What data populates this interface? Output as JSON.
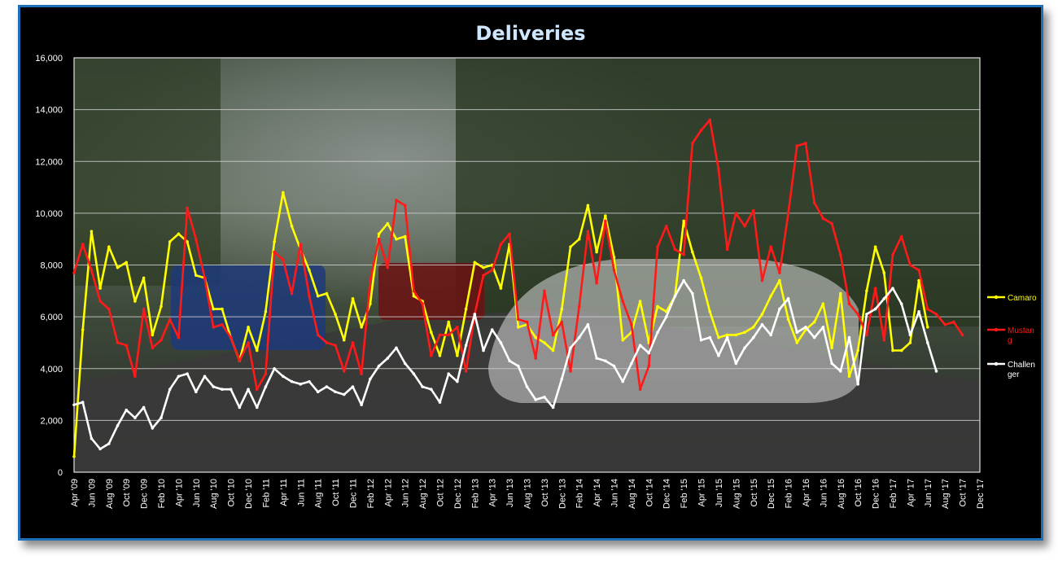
{
  "chart_data": {
    "type": "line",
    "title": "Deliveries",
    "xlabel": "",
    "ylabel": "",
    "ylim": [
      0,
      16000
    ],
    "y_ticks": [
      "0",
      "2,000",
      "4,000",
      "6,000",
      "8,000",
      "10,000",
      "12,000",
      "14,000",
      "16,000"
    ],
    "x_tick_labels": [
      "Apr '09",
      "Jun '09",
      "Aug '09",
      "Oct '09",
      "Dec '09",
      "Feb '10",
      "Apr '10",
      "Jun '10",
      "Aug '10",
      "Oct '10",
      "Dec '10",
      "Feb '11",
      "Apr '11",
      "Jun '11",
      "Aug '11",
      "Oct '11",
      "Dec '11",
      "Feb '12",
      "Apr '12",
      "Jun '12",
      "Aug '12",
      "Oct '12",
      "Dec '12",
      "Feb '13",
      "Apr '13",
      "Jun '13",
      "Aug '13",
      "Oct '13",
      "Dec '13",
      "Feb '14",
      "Apr '14",
      "Jun '14",
      "Aug '14",
      "Oct '14",
      "Dec '14",
      "Feb '15",
      "Apr '15",
      "Jun '15",
      "Aug '15",
      "Oct '15",
      "Dec '15",
      "Feb '16",
      "Apr '16",
      "Jun '16",
      "Aug '16",
      "Oct '16",
      "Dec '16",
      "Feb '17",
      "Apr '17",
      "Jun '17",
      "Aug '17",
      "Oct '17",
      "Dec '17"
    ],
    "grid": true,
    "legend_position": "right",
    "series": [
      {
        "name": "Camaro",
        "color": "#ffff00",
        "values": [
          600,
          5500,
          9300,
          7100,
          8700,
          7900,
          8100,
          6600,
          7500,
          5300,
          6400,
          8900,
          9200,
          8900,
          7600,
          7500,
          6300,
          6300,
          5200,
          4300,
          5600,
          4700,
          6200,
          8900,
          10800,
          9500,
          8600,
          7800,
          6800,
          6900,
          6100,
          5100,
          6700,
          5600,
          6500,
          9200,
          9600,
          9000,
          9100,
          6800,
          6600,
          5400,
          4500,
          5800,
          4500,
          6300,
          8100,
          7900,
          8000,
          7100,
          8800,
          5600,
          5700,
          5200,
          5000,
          4700,
          6300,
          8700,
          9000,
          10300,
          8500,
          9900,
          8300,
          5100,
          5400,
          6600,
          5000,
          6400,
          6200,
          6800,
          9700,
          8500,
          7500,
          6200,
          5200,
          5300,
          5300,
          5400,
          5600,
          6100,
          6800,
          7400,
          5900,
          5000,
          5500,
          5800,
          6500,
          4800,
          6900,
          3700,
          4700,
          7000,
          8700,
          7700,
          4700,
          4700,
          5000,
          7400,
          5600
        ]
      },
      {
        "name": "Mustang",
        "color": "#ff1a1a",
        "values": [
          7700,
          8800,
          7800,
          6600,
          6300,
          5000,
          4900,
          3700,
          6300,
          4800,
          5100,
          5900,
          5200,
          10200,
          9000,
          7500,
          5600,
          5700,
          5200,
          4300,
          5000,
          3200,
          3800,
          8500,
          8200,
          6900,
          8800,
          6800,
          5300,
          5000,
          4900,
          3900,
          5000,
          3800,
          7400,
          9000,
          7900,
          10500,
          10300,
          7000,
          6500,
          4500,
          5300,
          5300,
          5600,
          3900,
          6100,
          7600,
          7800,
          8800,
          9200,
          5900,
          5800,
          4400,
          7000,
          5300,
          5800,
          3900,
          6400,
          9300,
          7300,
          9700,
          7800,
          6600,
          5700,
          3200,
          4100,
          8700,
          9500,
          8600,
          8400,
          12700,
          13200,
          13600,
          11700,
          8600,
          10000,
          9500,
          10100,
          7400,
          8700,
          7700,
          10000,
          12600,
          12700,
          10400,
          9800,
          9600,
          8400,
          6500,
          6100,
          5300,
          7100,
          5100,
          8400,
          9100,
          8000,
          7800,
          6300,
          6100,
          5700,
          5800,
          5300
        ]
      },
      {
        "name": "Challenger",
        "color": "#ffffff",
        "values": [
          2600,
          2700,
          1300,
          900,
          1100,
          1800,
          2400,
          2100,
          2500,
          1700,
          2100,
          3200,
          3700,
          3800,
          3100,
          3700,
          3300,
          3200,
          3200,
          2500,
          3200,
          2500,
          3300,
          4000,
          3700,
          3500,
          3400,
          3500,
          3100,
          3300,
          3100,
          3000,
          3300,
          2600,
          3600,
          4100,
          4400,
          4800,
          4200,
          3800,
          3300,
          3200,
          2700,
          3800,
          3500,
          4900,
          6100,
          4700,
          5500,
          5000,
          4300,
          4100,
          3300,
          2800,
          2900,
          2500,
          3600,
          4800,
          5200,
          5700,
          4400,
          4300,
          4100,
          3500,
          4200,
          4900,
          4600,
          5400,
          6000,
          6800,
          7400,
          6900,
          5100,
          5200,
          4500,
          5200,
          4200,
          4800,
          5200,
          5700,
          5300,
          6300,
          6700,
          5400,
          5600,
          5200,
          5600,
          4200,
          3900,
          5200,
          3400,
          6100,
          6300,
          6700,
          7100,
          6500,
          5300,
          6200,
          5000,
          3900
        ]
      }
    ]
  }
}
